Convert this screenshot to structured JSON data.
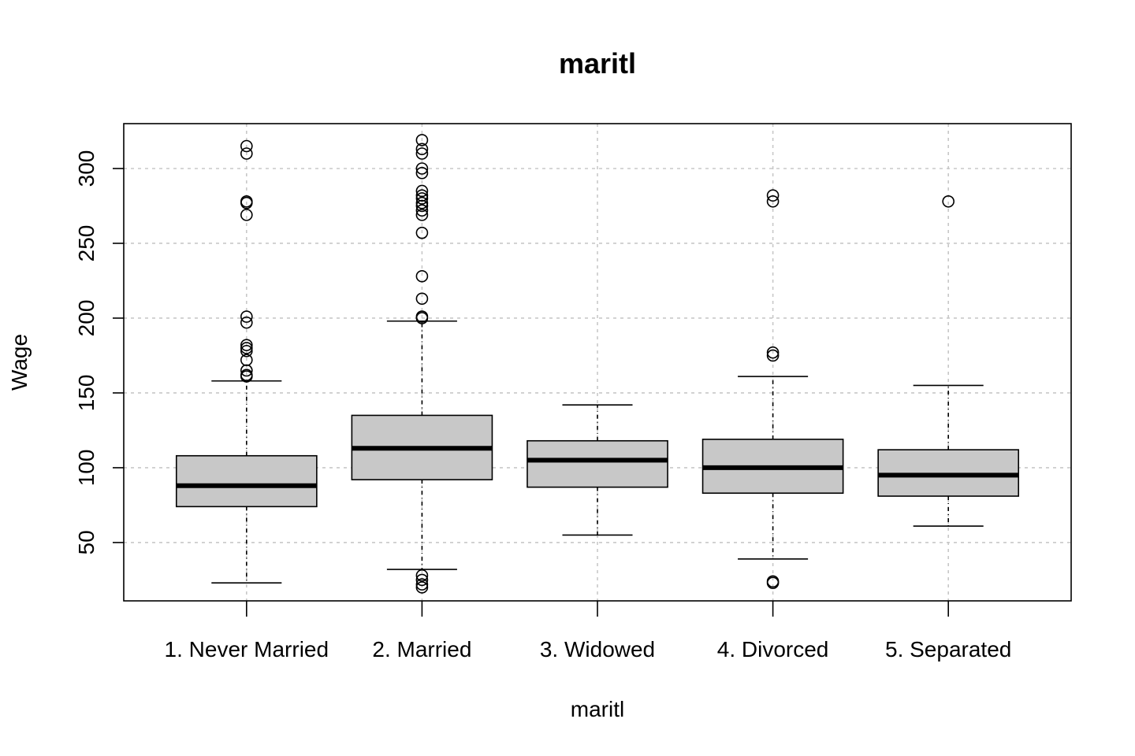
{
  "chart_data": {
    "type": "boxplot",
    "title": "maritl",
    "xlabel": "maritl",
    "ylabel": "Wage",
    "ylim": [
      11,
      330
    ],
    "yticks": [
      50,
      100,
      150,
      200,
      250,
      300
    ],
    "grid": true,
    "categories": [
      "1. Never Married",
      "2. Married",
      "3. Widowed",
      "4. Divorced",
      "5. Separated"
    ],
    "boxes": [
      {
        "category": "1. Never Married",
        "whisker_low": 23,
        "q1": 74,
        "median": 88,
        "q3": 108,
        "whisker_high": 158,
        "outliers": [
          315,
          310,
          278,
          277,
          269,
          201,
          197,
          182,
          180,
          178,
          172,
          165,
          162,
          161
        ]
      },
      {
        "category": "2. Married",
        "whisker_low": 32,
        "q1": 92,
        "median": 113,
        "q3": 135,
        "whisker_high": 198,
        "outliers": [
          319,
          313,
          310,
          300,
          297,
          285,
          282,
          280,
          277,
          275,
          272,
          269,
          257,
          228,
          213,
          201,
          200,
          28,
          25,
          22,
          20
        ]
      },
      {
        "category": "3. Widowed",
        "whisker_low": 55,
        "q1": 87,
        "median": 105,
        "q3": 118,
        "whisker_high": 142,
        "outliers": []
      },
      {
        "category": "4. Divorced",
        "whisker_low": 39,
        "q1": 83,
        "median": 100,
        "q3": 119,
        "whisker_high": 161,
        "outliers": [
          282,
          278,
          177,
          175,
          24,
          23
        ]
      },
      {
        "category": "5. Separated",
        "whisker_low": 61,
        "q1": 81,
        "median": 95,
        "q3": 112,
        "whisker_high": 155,
        "outliers": [
          278
        ]
      }
    ],
    "colors": {
      "box_fill": "#c8c8c8",
      "grid": "#c8c8c8",
      "stroke": "#000000"
    }
  }
}
